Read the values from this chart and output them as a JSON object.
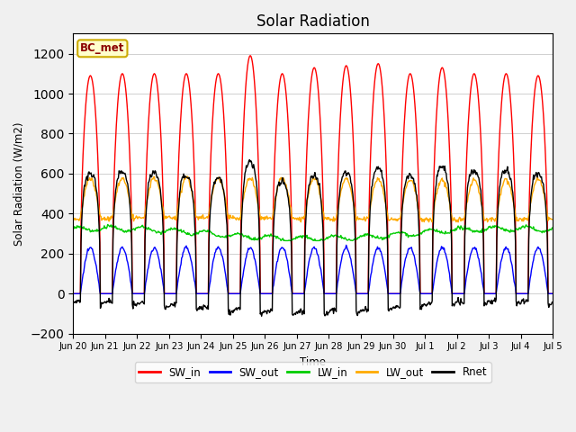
{
  "title": "Solar Radiation",
  "ylabel": "Solar Radiation (W/m2)",
  "xlabel": "Time",
  "ylim": [
    -200,
    1300
  ],
  "yticks": [
    -200,
    0,
    200,
    400,
    600,
    800,
    1000,
    1200
  ],
  "n_days": 15,
  "station_label": "BC_met",
  "colors": {
    "SW_in": "#ff0000",
    "SW_out": "#0000ff",
    "LW_in": "#00cc00",
    "LW_out": "#ffaa00",
    "Rnet": "#000000"
  },
  "legend_labels": [
    "SW_in",
    "SW_out",
    "LW_in",
    "LW_out",
    "Rnet"
  ],
  "tick_labels": [
    "Jun 20",
    "Jun 21",
    "Jun 22",
    "Jun 23",
    "Jun 24",
    "Jun 25",
    "Jun 26",
    "Jun 27",
    "Jun 28",
    "Jun 29",
    "Jun 30",
    "Jul 1",
    "Jul 2",
    "Jul 3",
    "Jul 4",
    "Jul 5"
  ],
  "bg_color": "#f0f0f0",
  "plot_bg": "#ffffff"
}
